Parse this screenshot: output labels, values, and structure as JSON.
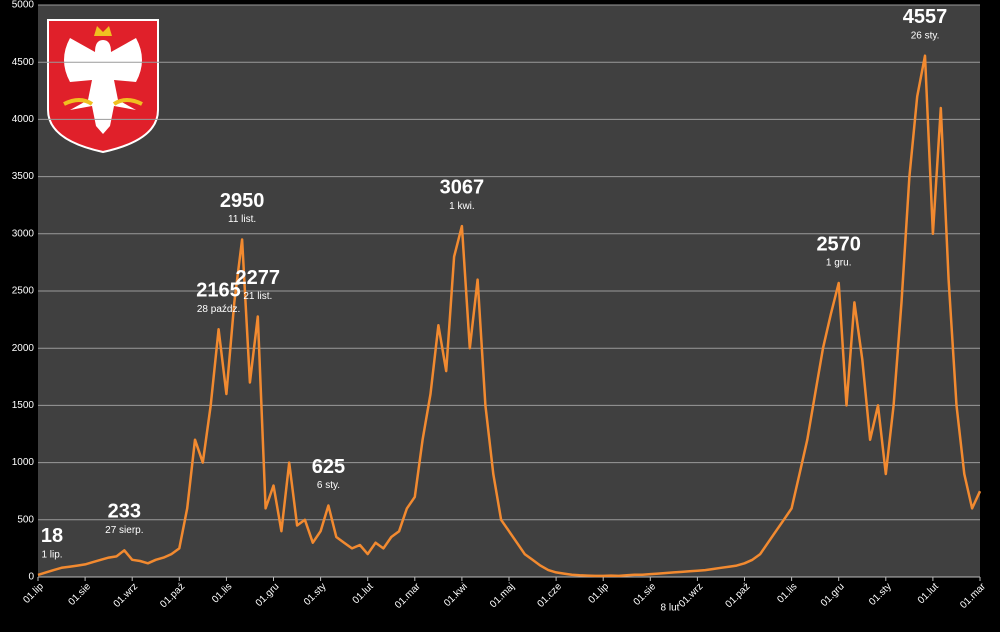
{
  "chart_data": {
    "type": "line",
    "categories": [
      "01.lip",
      null,
      null,
      null,
      null,
      null,
      "01.sie",
      null,
      null,
      null,
      null,
      null,
      "01.wrz",
      null,
      null,
      null,
      null,
      null,
      "01.paź",
      null,
      null,
      null,
      null,
      null,
      "01.lis",
      null,
      null,
      null,
      null,
      null,
      "01.gru",
      null,
      null,
      null,
      null,
      null,
      "01.sty",
      null,
      null,
      null,
      null,
      null,
      "01.lut",
      null,
      null,
      null,
      null,
      null,
      "01.mar",
      null,
      null,
      null,
      null,
      null,
      "01.kwi",
      null,
      null,
      null,
      null,
      null,
      "01.maj",
      null,
      null,
      null,
      null,
      null,
      "01.cze",
      null,
      null,
      null,
      null,
      null,
      "01.lip",
      null,
      null,
      null,
      null,
      null,
      "01.sie",
      null,
      null,
      null,
      null,
      null,
      "01.wrz",
      null,
      null,
      null,
      null,
      null,
      "01.paź",
      null,
      null,
      null,
      null,
      null,
      "01.lis",
      null,
      null,
      null,
      null,
      null,
      "01.gru",
      null,
      null,
      null,
      null,
      null,
      "01.sty",
      null,
      null,
      null,
      null,
      null,
      "01.lut",
      null,
      null,
      null,
      null,
      null,
      "01.mar"
    ],
    "series": [
      {
        "color": "#f28a30",
        "values": [
          18,
          40,
          60,
          80,
          90,
          100,
          110,
          130,
          150,
          170,
          180,
          233,
          150,
          140,
          120,
          150,
          170,
          200,
          250,
          600,
          1200,
          1000,
          1500,
          2165,
          1600,
          2400,
          2950,
          1700,
          2277,
          600,
          800,
          400,
          1000,
          450,
          500,
          300,
          400,
          625,
          350,
          300,
          250,
          280,
          200,
          300,
          250,
          350,
          400,
          600,
          700,
          1200,
          1600,
          2200,
          1800,
          2800,
          3067,
          2000,
          2600,
          1500,
          900,
          500,
          400,
          300,
          200,
          150,
          100,
          60,
          40,
          30,
          20,
          15,
          12,
          10,
          10,
          12,
          10,
          15,
          20,
          20,
          25,
          30,
          35,
          40,
          45,
          50,
          55,
          60,
          70,
          80,
          90,
          100,
          120,
          150,
          200,
          300,
          400,
          500,
          600,
          900,
          1200,
          1600,
          2000,
          2300,
          2570,
          1500,
          2400,
          1900,
          1200,
          1500,
          900,
          1500,
          2400,
          3500,
          4200,
          4557,
          3000,
          4100,
          2600,
          1500,
          900,
          600,
          750
        ]
      }
    ],
    "annotations": [
      {
        "value": 18,
        "label": "1 lip."
      },
      {
        "value": 233,
        "label": "27 sierp."
      },
      {
        "value": 2165,
        "label": "28 paźdz."
      },
      {
        "value": 2950,
        "label": "11 list."
      },
      {
        "value": 2277,
        "label": "21 list."
      },
      {
        "value": 625,
        "label": "6 sty."
      },
      {
        "value": 3067,
        "label": "1 kwi."
      },
      {
        "value": 2570,
        "label": "1 gru."
      },
      {
        "value": 4557,
        "label": "26 sty."
      }
    ],
    "stray_label": "8 lut",
    "ylim": [
      0,
      5000
    ],
    "yticks": [
      0,
      500,
      1000,
      1500,
      2000,
      2500,
      3000,
      3500,
      4000,
      4500,
      5000
    ],
    "grid": true
  }
}
